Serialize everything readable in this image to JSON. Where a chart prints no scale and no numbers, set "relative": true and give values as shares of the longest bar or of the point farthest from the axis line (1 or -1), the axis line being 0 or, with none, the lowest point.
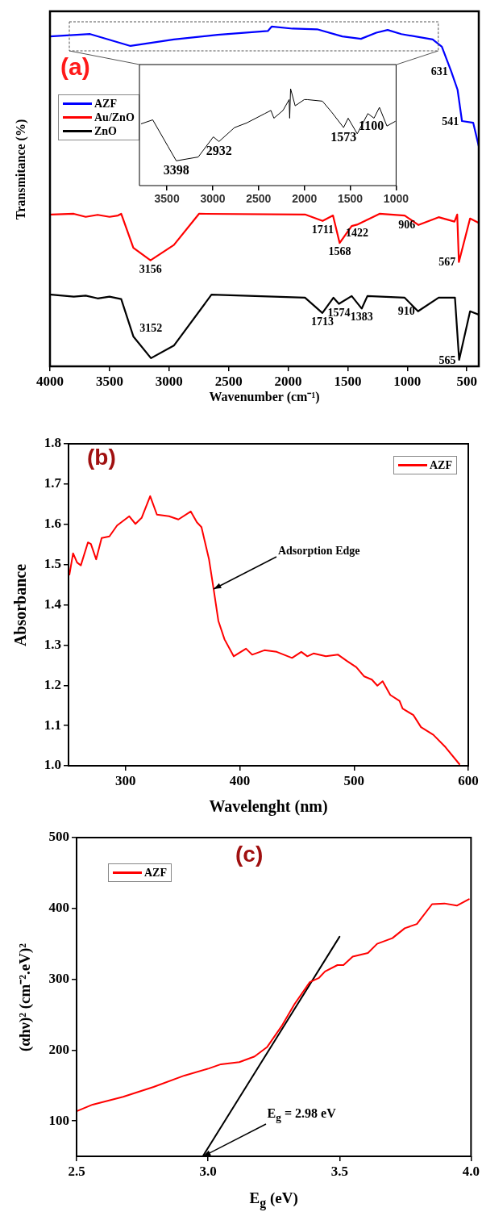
{
  "chart_data": [
    {
      "type": "line",
      "xlabel": "Wavenumber (cm⁻¹)",
      "ylabel": "Transmitance (%)",
      "relative": true,
      "tick_labels": "x",
      "xlim": [
        4000,
        400
      ],
      "xticks": [
        4000,
        3500,
        3000,
        2500,
        2000,
        1500,
        1000,
        500
      ],
      "legend": "top left",
      "series": [
        {
          "name": "AZF",
          "color": "#0000ff",
          "x": [
            4000,
            3663,
            3324,
            2960,
            2593,
            2171,
            2139,
            1964,
            1757,
            1546,
            1389,
            1260,
            1165,
            1050,
            787,
            710,
            631,
            578,
            541,
            447,
            400
          ],
          "values": [
            0.971,
            0.978,
            0.943,
            0.962,
            0.976,
            0.987,
            1.0,
            0.994,
            0.992,
            0.971,
            0.964,
            0.982,
            0.99,
            0.978,
            0.962,
            0.941,
            0.868,
            0.814,
            0.722,
            0.717,
            0.648
          ]
        },
        {
          "name": "Au/ZnO",
          "color": "#ff0000",
          "x": [
            3990,
            3800,
            3700,
            3600,
            3500,
            3429,
            3402,
            3300,
            3156,
            2960,
            2749,
            1859,
            1711,
            1624,
            1568,
            1467,
            1422,
            1233,
            1022,
            906,
            737,
            604,
            581,
            567,
            473,
            400
          ],
          "values": [
            0.447,
            0.449,
            0.44,
            0.446,
            0.44,
            0.444,
            0.449,
            0.349,
            0.312,
            0.357,
            0.449,
            0.447,
            0.428,
            0.444,
            0.363,
            0.413,
            0.417,
            0.449,
            0.444,
            0.416,
            0.439,
            0.426,
            0.447,
            0.307,
            0.435,
            0.422
          ]
        },
        {
          "name": "ZnO",
          "color": "#000000",
          "x": [
            3990,
            3800,
            3700,
            3600,
            3500,
            3402,
            3300,
            3152,
            2960,
            2644,
            1859,
            1713,
            1620,
            1574,
            1467,
            1383,
            1335,
            1022,
            910,
            737,
            600,
            565,
            473,
            400
          ],
          "values": [
            0.211,
            0.205,
            0.208,
            0.2,
            0.205,
            0.198,
            0.088,
            0.024,
            0.061,
            0.211,
            0.202,
            0.157,
            0.202,
            0.184,
            0.207,
            0.17,
            0.207,
            0.202,
            0.162,
            0.202,
            0.202,
            0.019,
            0.162,
            0.152
          ]
        }
      ],
      "annotations": [
        "(a)",
        {
          "text": "631",
          "x": 631,
          "y": 0.868
        },
        {
          "text": "541",
          "x": 541,
          "y": 0.722
        },
        {
          "text": "3156",
          "x": 3156,
          "y": 0.312
        },
        {
          "text": "1711",
          "x": 1711,
          "y": 0.428
        },
        {
          "text": "1568",
          "x": 1568,
          "y": 0.363
        },
        {
          "text": "1422",
          "x": 1422,
          "y": 0.417
        },
        {
          "text": "906",
          "x": 906,
          "y": 0.416
        },
        {
          "text": "567",
          "x": 567,
          "y": 0.307
        },
        {
          "text": "3152",
          "x": 3152,
          "y": 0.024
        },
        {
          "text": "1713",
          "x": 1713,
          "y": 0.157
        },
        {
          "text": "1574",
          "x": 1574,
          "y": 0.184
        },
        {
          "text": "1383",
          "x": 1383,
          "y": 0.17
        },
        {
          "text": "910",
          "x": 910,
          "y": 0.162
        },
        {
          "text": "565",
          "x": 565,
          "y": 0.019
        }
      ]
    },
    {
      "type": "line",
      "relative": true,
      "tick_labels": "x",
      "xlim": [
        3800,
        1000
      ],
      "xticks": [
        3500,
        3000,
        2500,
        2000,
        1500,
        1000
      ],
      "series": [
        {
          "color": "#000000",
          "x": [
            3781,
            3655,
            3490,
            3398,
            3159,
            2994,
            2932,
            2763,
            2630,
            2432,
            2366,
            2333,
            2234,
            2167,
            2161,
            2151,
            2101,
            2002,
            1969,
            1804,
            1704,
            1573,
            1523,
            1424,
            1308,
            1241,
            1182,
            1100,
            1010
          ],
          "values": [
            0.638,
            0.679,
            0.407,
            0.256,
            0.295,
            0.503,
            0.455,
            0.599,
            0.647,
            0.744,
            0.776,
            0.696,
            0.776,
            0.888,
            0.696,
            1.0,
            0.824,
            0.888,
            0.888,
            0.872,
            0.76,
            0.599,
            0.696,
            0.535,
            0.744,
            0.696,
            0.808,
            0.615,
            0.663
          ]
        }
      ],
      "annotations": [
        {
          "text": "3398",
          "x": 3398,
          "y": 0.256
        },
        {
          "text": "2932",
          "x": 2932,
          "y": 0.455
        },
        {
          "text": "1573",
          "x": 1573,
          "y": 0.599
        },
        {
          "text": "1100",
          "x": 1100,
          "y": 0.615
        }
      ]
    },
    {
      "type": "line",
      "xlabel": "Wavelenght (nm)",
      "ylabel": "Absorbance",
      "xlim": [
        250,
        600
      ],
      "xticks": [
        300,
        400,
        500,
        600
      ],
      "ylim": [
        1.0,
        1.8
      ],
      "yticks": [
        {
          "value": 1.0,
          "label": "1.0"
        },
        1.1,
        1.2,
        1.3,
        1.4,
        1.5,
        1.6,
        1.7,
        1.8
      ],
      "legend": "top right",
      "series": [
        {
          "name": "AZF",
          "color": "#ff0000",
          "x": [
            250.8,
            254,
            257.5,
            260.8,
            267,
            269.6,
            274.2,
            279,
            285.8,
            292.5,
            303.2,
            308.6,
            314,
            321.5,
            327.4,
            338,
            346.2,
            357,
            362.4,
            366.4,
            373,
            377,
            381.2,
            386.6,
            394.6,
            405.4,
            410.8,
            421.5,
            432.3,
            445.7,
            453.8,
            459.1,
            464.5,
            475.3,
            486,
            494,
            502,
            508.9,
            515.6,
            520.4,
            525,
            531.7,
            539.8,
            542.5,
            551.9,
            558.6,
            569.4,
            580.1,
            592.2
          ],
          "values": [
            1.475,
            1.528,
            1.505,
            1.498,
            1.555,
            1.551,
            1.513,
            1.566,
            1.57,
            1.597,
            1.62,
            1.601,
            1.616,
            1.67,
            1.624,
            1.62,
            1.612,
            1.632,
            1.605,
            1.593,
            1.513,
            1.44,
            1.36,
            1.314,
            1.272,
            1.291,
            1.276,
            1.287,
            1.283,
            1.268,
            1.283,
            1.272,
            1.279,
            1.272,
            1.276,
            1.26,
            1.245,
            1.222,
            1.214,
            1.199,
            1.21,
            1.176,
            1.161,
            1.142,
            1.126,
            1.096,
            1.077,
            1.046,
            1.004
          ]
        }
      ],
      "annotations": [
        "(b)",
        {
          "text": "Adsorption Edge",
          "x": 377,
          "y": 1.44
        }
      ]
    },
    {
      "type": "line",
      "xlabel": "E$_{g}$ (eV)",
      "ylabel": "(αhν)² (cm⁻².eV)²",
      "xlim": [
        2.5,
        4.0
      ],
      "xticks": [
        2.5,
        {
          "value": 3.0,
          "label": "3.0"
        },
        3.5,
        {
          "value": 4.0,
          "label": "4.0"
        }
      ],
      "ylim": [
        50,
        500
      ],
      "yticks": [
        100,
        200,
        300,
        400,
        500
      ],
      "legend": "top left",
      "series": [
        {
          "name": "AZF",
          "color": "#ff0000",
          "x": [
            2.502,
            2.561,
            2.677,
            2.793,
            2.91,
            3.003,
            3.049,
            3.119,
            3.177,
            3.224,
            3.282,
            3.329,
            3.387,
            3.422,
            3.445,
            3.492,
            3.515,
            3.55,
            3.608,
            3.643,
            3.701,
            3.748,
            3.794,
            3.852,
            3.899,
            3.946,
            3.992
          ],
          "values": [
            114,
            123,
            134,
            148,
            164,
            174,
            180,
            183,
            191,
            204,
            235,
            265,
            296,
            302,
            311,
            320,
            320,
            332,
            337,
            350,
            358,
            372,
            378,
            406,
            407,
            404,
            413
          ]
        },
        {
          "color": "#000000",
          "x": [
            2.98,
            3.5
          ],
          "values": [
            50,
            360
          ]
        }
      ],
      "annotations": [
        "(c)",
        {
          "text": "E$_{g}$ = 2.98 eV",
          "x": 2.98,
          "y": 50
        }
      ]
    }
  ]
}
